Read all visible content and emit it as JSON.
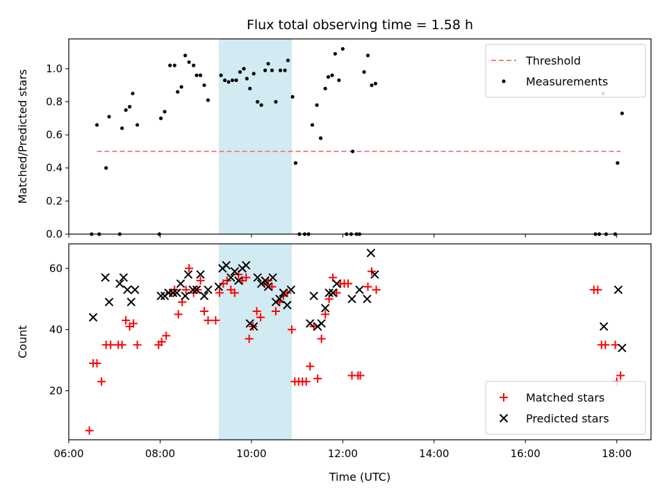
{
  "chart_data": {
    "type": "scatter",
    "title": "Flux total observing time = 1.58 h",
    "x_unit": "hours UTC",
    "xlim": [
      "06:00",
      "18:45"
    ],
    "xticks": [
      "06:00",
      "08:00",
      "10:00",
      "12:00",
      "14:00",
      "16:00",
      "18:00"
    ],
    "xlabel": "Time (UTC)",
    "highlight_band": {
      "start": "09:17",
      "end": "10:53",
      "color": "#add8e6"
    },
    "panels": [
      {
        "id": "ratio",
        "ylabel": "Matched/Predicted stars",
        "ylim": [
          0,
          1.18
        ],
        "yticks": [
          "0.0",
          "0.2",
          "0.4",
          "0.6",
          "0.8",
          "1.0"
        ],
        "legend_position": "top-right",
        "series": [
          {
            "name": "Threshold",
            "kind": "dashed-line",
            "color": "#f08080",
            "x": [
              "06:37",
              "18:05"
            ],
            "y": [
              0.5,
              0.5
            ]
          },
          {
            "name": "Measurements",
            "kind": "dot",
            "color": "#000000",
            "points": [
              [
                "06:30",
                0.0
              ],
              [
                "06:40",
                0.0
              ],
              [
                "06:37",
                0.66
              ],
              [
                "06:49",
                0.4
              ],
              [
                "06:53",
                0.71
              ],
              [
                "07:07",
                0.0
              ],
              [
                "07:10",
                0.64
              ],
              [
                "07:15",
                0.75
              ],
              [
                "07:20",
                0.77
              ],
              [
                "07:24",
                0.85
              ],
              [
                "07:30",
                0.66
              ],
              [
                "07:59",
                0.0
              ],
              [
                "08:01",
                0.7
              ],
              [
                "08:06",
                0.74
              ],
              [
                "08:13",
                1.02
              ],
              [
                "08:19",
                1.02
              ],
              [
                "08:23",
                0.86
              ],
              [
                "08:28",
                0.89
              ],
              [
                "08:33",
                1.08
              ],
              [
                "08:38",
                1.04
              ],
              [
                "08:44",
                1.02
              ],
              [
                "08:48",
                0.96
              ],
              [
                "08:53",
                0.96
              ],
              [
                "08:58",
                0.9
              ],
              [
                "09:03",
                0.81
              ],
              [
                "09:20",
                0.96
              ],
              [
                "09:25",
                0.93
              ],
              [
                "09:30",
                0.92
              ],
              [
                "09:35",
                0.93
              ],
              [
                "09:40",
                0.93
              ],
              [
                "09:45",
                0.98
              ],
              [
                "09:50",
                1.0
              ],
              [
                "09:54",
                0.94
              ],
              [
                "09:58",
                0.88
              ],
              [
                "10:03",
                0.97
              ],
              [
                "10:08",
                0.8
              ],
              [
                "10:13",
                0.78
              ],
              [
                "10:18",
                0.99
              ],
              [
                "10:22",
                1.03
              ],
              [
                "10:27",
                0.99
              ],
              [
                "10:32",
                0.8
              ],
              [
                "10:38",
                0.99
              ],
              [
                "10:44",
                0.99
              ],
              [
                "10:48",
                1.05
              ],
              [
                "10:54",
                0.83
              ],
              [
                "10:58",
                0.43
              ],
              [
                "11:03",
                0.0
              ],
              [
                "11:10",
                0.0
              ],
              [
                "11:15",
                0.0
              ],
              [
                "11:20",
                0.66
              ],
              [
                "11:26",
                0.78
              ],
              [
                "11:31",
                0.58
              ],
              [
                "11:37",
                0.88
              ],
              [
                "11:41",
                0.95
              ],
              [
                "11:46",
                0.96
              ],
              [
                "11:50",
                1.09
              ],
              [
                "11:55",
                0.93
              ],
              [
                "12:00",
                1.12
              ],
              [
                "12:05",
                0.0
              ],
              [
                "12:11",
                0.0
              ],
              [
                "12:13",
                0.5
              ],
              [
                "12:18",
                0.0
              ],
              [
                "12:22",
                0.0
              ],
              [
                "12:28",
                0.98
              ],
              [
                "12:33",
                1.08
              ],
              [
                "12:38",
                0.9
              ],
              [
                "12:43",
                0.91
              ],
              [
                "17:32",
                0.0
              ],
              [
                "17:37",
                0.0
              ],
              [
                "17:42",
                0.85
              ],
              [
                "17:46",
                0.0
              ],
              [
                "17:58",
                0.0
              ],
              [
                "18:01",
                0.43
              ],
              [
                "18:07",
                0.73
              ]
            ]
          }
        ]
      },
      {
        "id": "counts",
        "ylabel": "Count",
        "ylim": [
          4,
          68
        ],
        "yticks": [
          "20",
          "40",
          "60"
        ],
        "legend_position": "bottom-right",
        "series": [
          {
            "name": "Matched stars",
            "kind": "plus",
            "color": "#ff0000",
            "points": [
              [
                "06:27",
                7
              ],
              [
                "06:32",
                29
              ],
              [
                "06:37",
                29
              ],
              [
                "06:43",
                23
              ],
              [
                "06:49",
                35
              ],
              [
                "06:55",
                35
              ],
              [
                "07:05",
                35
              ],
              [
                "07:10",
                35
              ],
              [
                "07:15",
                43
              ],
              [
                "07:20",
                41
              ],
              [
                "07:25",
                42
              ],
              [
                "07:30",
                35
              ],
              [
                "07:58",
                35
              ],
              [
                "08:02",
                36
              ],
              [
                "08:08",
                38
              ],
              [
                "08:13",
                52
              ],
              [
                "08:19",
                53
              ],
              [
                "08:24",
                45
              ],
              [
                "08:29",
                49
              ],
              [
                "08:34",
                53
              ],
              [
                "08:38",
                60
              ],
              [
                "08:44",
                52
              ],
              [
                "08:49",
                53
              ],
              [
                "08:53",
                56
              ],
              [
                "08:58",
                46
              ],
              [
                "09:03",
                43
              ],
              [
                "09:13",
                43
              ],
              [
                "09:18",
                52
              ],
              [
                "09:23",
                55
              ],
              [
                "09:28",
                56
              ],
              [
                "09:33",
                53
              ],
              [
                "09:38",
                52
              ],
              [
                "09:43",
                58
              ],
              [
                "09:48",
                56
              ],
              [
                "09:53",
                57
              ],
              [
                "09:57",
                37
              ],
              [
                "10:02",
                41
              ],
              [
                "10:07",
                46
              ],
              [
                "10:12",
                44
              ],
              [
                "10:17",
                55
              ],
              [
                "10:22",
                56
              ],
              [
                "10:27",
                54
              ],
              [
                "10:32",
                46
              ],
              [
                "10:37",
                49
              ],
              [
                "10:42",
                51
              ],
              [
                "10:47",
                52
              ],
              [
                "10:53",
                40
              ],
              [
                "10:57",
                23
              ],
              [
                "11:02",
                23
              ],
              [
                "11:07",
                23
              ],
              [
                "11:12",
                23
              ],
              [
                "11:17",
                28
              ],
              [
                "11:22",
                41
              ],
              [
                "11:27",
                24
              ],
              [
                "11:32",
                37
              ],
              [
                "11:37",
                45
              ],
              [
                "11:42",
                50
              ],
              [
                "11:47",
                57
              ],
              [
                "11:52",
                52
              ],
              [
                "11:57",
                55
              ],
              [
                "12:02",
                55
              ],
              [
                "12:07",
                55
              ],
              [
                "12:12",
                25
              ],
              [
                "12:20",
                25
              ],
              [
                "12:23",
                25
              ],
              [
                "12:33",
                54
              ],
              [
                "12:38",
                59
              ],
              [
                "12:44",
                53
              ],
              [
                "17:30",
                53
              ],
              [
                "17:35",
                53
              ],
              [
                "17:40",
                35
              ],
              [
                "17:45",
                35
              ],
              [
                "17:58",
                35
              ],
              [
                "18:00",
                23
              ],
              [
                "18:05",
                25
              ]
            ]
          },
          {
            "name": "Predicted stars",
            "kind": "x",
            "color": "#000000",
            "points": [
              [
                "06:32",
                44
              ],
              [
                "06:48",
                57
              ],
              [
                "06:53",
                49
              ],
              [
                "07:07",
                55
              ],
              [
                "07:12",
                57
              ],
              [
                "07:17",
                53
              ],
              [
                "07:22",
                49
              ],
              [
                "07:27",
                53
              ],
              [
                "08:01",
                51
              ],
              [
                "08:06",
                51
              ],
              [
                "08:11",
                52
              ],
              [
                "08:17",
                52
              ],
              [
                "08:22",
                52
              ],
              [
                "08:27",
                55
              ],
              [
                "08:33",
                51
              ],
              [
                "08:37",
                58
              ],
              [
                "08:43",
                53
              ],
              [
                "08:48",
                53
              ],
              [
                "08:53",
                58
              ],
              [
                "08:58",
                51
              ],
              [
                "09:03",
                53
              ],
              [
                "09:17",
                54
              ],
              [
                "09:22",
                60
              ],
              [
                "09:27",
                61
              ],
              [
                "09:33",
                57
              ],
              [
                "09:38",
                59
              ],
              [
                "09:43",
                56
              ],
              [
                "09:48",
                60
              ],
              [
                "09:53",
                61
              ],
              [
                "09:58",
                42
              ],
              [
                "10:03",
                41
              ],
              [
                "10:08",
                57
              ],
              [
                "10:13",
                55
              ],
              [
                "10:18",
                56
              ],
              [
                "10:22",
                54
              ],
              [
                "10:28",
                57
              ],
              [
                "10:32",
                49
              ],
              [
                "10:37",
                50
              ],
              [
                "10:42",
                52
              ],
              [
                "10:47",
                48
              ],
              [
                "10:52",
                53
              ],
              [
                "11:17",
                42
              ],
              [
                "11:22",
                51
              ],
              [
                "11:27",
                41
              ],
              [
                "11:32",
                42
              ],
              [
                "11:37",
                47
              ],
              [
                "11:42",
                52
              ],
              [
                "11:47",
                52
              ],
              [
                "11:52",
                55
              ],
              [
                "12:12",
                50
              ],
              [
                "12:22",
                53
              ],
              [
                "12:32",
                50
              ],
              [
                "12:37",
                65
              ],
              [
                "12:42",
                58
              ],
              [
                "17:43",
                41
              ],
              [
                "18:02",
                53
              ],
              [
                "18:07",
                34
              ]
            ]
          }
        ]
      }
    ]
  }
}
